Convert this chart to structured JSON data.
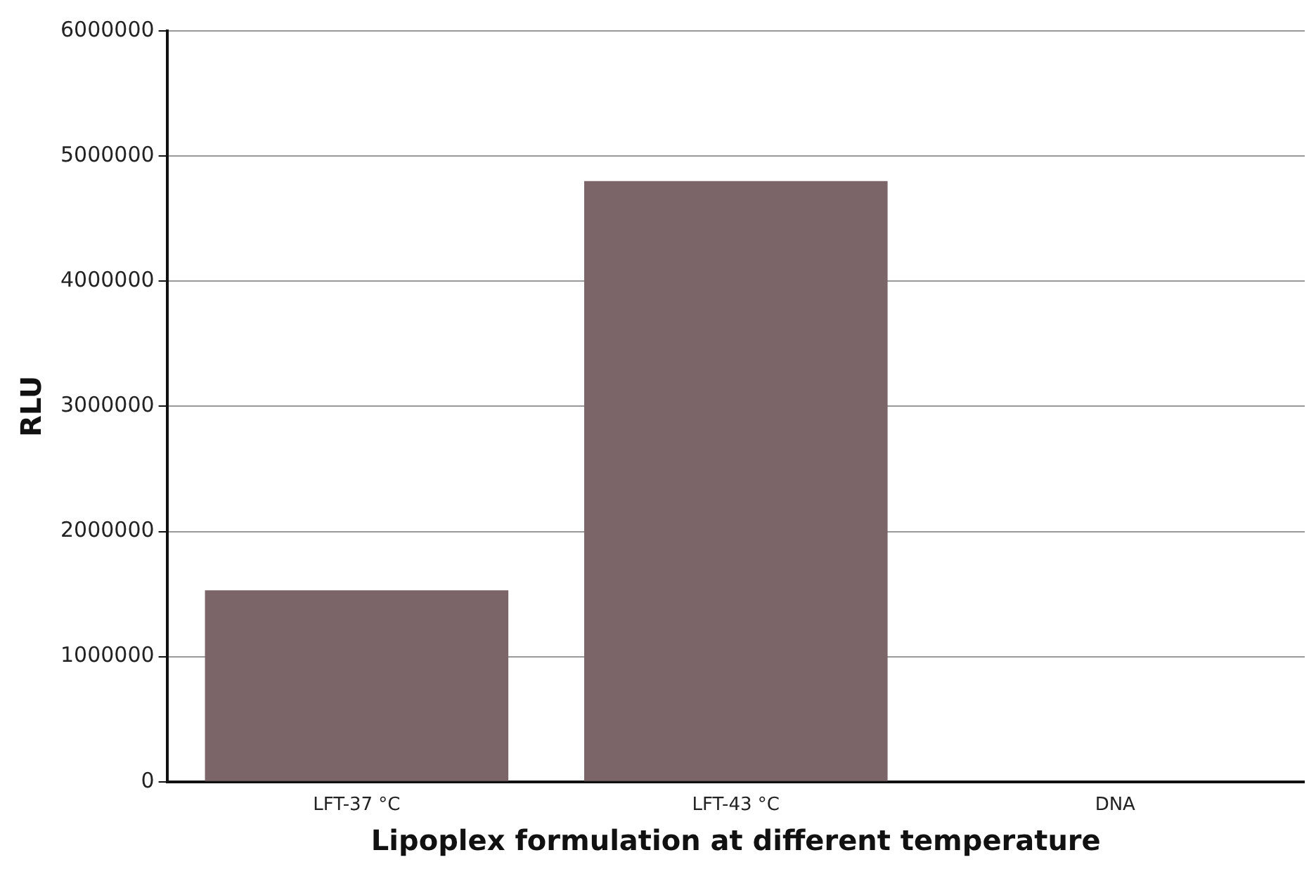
{
  "chart_data": {
    "type": "bar",
    "xlabel": "Lipoplex formulation at different temperature",
    "ylabel": "RLU",
    "categories": [
      "LFT-37 °C",
      "LFT-43 °C",
      "DNA"
    ],
    "values": [
      1530000,
      4800000,
      0
    ],
    "color": "#7b6568",
    "ylim": [
      0,
      6000000
    ],
    "yticks": [
      0,
      1000000,
      2000000,
      3000000,
      4000000,
      5000000,
      6000000
    ],
    "grid": "y"
  }
}
